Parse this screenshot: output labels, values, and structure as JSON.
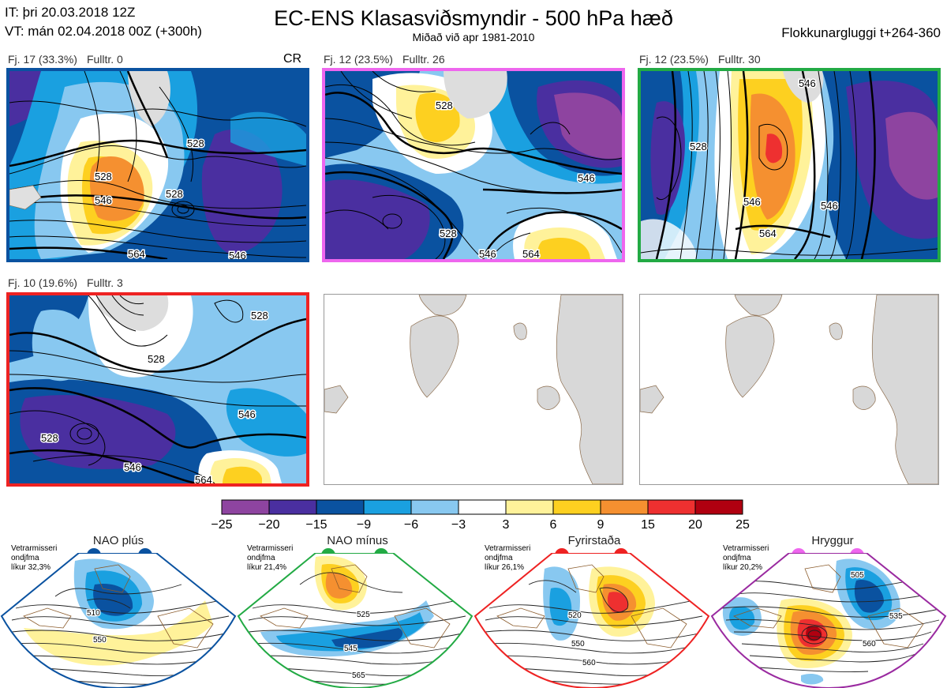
{
  "header": {
    "it": "IT: þri 20.03.2018 12Z",
    "vt": "VT: mán 02.04.2018 00Z  (+300h)",
    "title": "EC-ENS Klasasviðsmyndir - 500 hPa hæð",
    "subtitle": "Miðað við apr 1981-2010",
    "window": "Flokkunargluggi t+264-360"
  },
  "clusters": [
    {
      "count": "Fj. 17 (33.3%)",
      "member": "Fulltr. 0",
      "tag": "CR",
      "color": "#0a52a0",
      "contours": [
        "528",
        "528",
        "546",
        "564",
        "546",
        "528"
      ]
    },
    {
      "count": "Fj. 12 (23.5%)",
      "member": "Fulltr. 26",
      "tag": "",
      "color": "#ee66ee",
      "contours": [
        "528",
        "528",
        "546",
        "564",
        "546"
      ]
    },
    {
      "count": "Fj. 12 (23.5%)",
      "member": "Fulltr. 30",
      "tag": "",
      "color": "#22aa44",
      "contours": [
        "546",
        "528",
        "546",
        "564",
        "546"
      ]
    },
    {
      "count": "Fj. 10 (19.6%)",
      "member": "Fulltr. 3",
      "tag": "",
      "color": "#ee2222",
      "contours": [
        "528",
        "528",
        "546",
        "546",
        "564",
        "528"
      ]
    }
  ],
  "colorbar": {
    "colors": [
      "#8e44a0",
      "#4a2fa0",
      "#0a52a0",
      "#1aa0e0",
      "#88c8f0",
      "#ffffff",
      "#fff29a",
      "#fdd020",
      "#f59030",
      "#ee3030",
      "#b00010"
    ],
    "ticks": [
      "−25",
      "−20",
      "−15",
      "−9",
      "−6",
      "−3",
      "3",
      "6",
      "9",
      "15",
      "20",
      "25"
    ]
  },
  "regimes": [
    {
      "name": "NAO plús",
      "color": "#0a52a0",
      "info": [
        "Vetrarmisseri",
        "ondjfma",
        "líkur 32,3%"
      ],
      "contours": [
        "510",
        "550"
      ]
    },
    {
      "name": "NAO mínus",
      "color": "#22aa44",
      "info": [
        "Vetrarmisseri",
        "ondjfma",
        "líkur 21,4%"
      ],
      "contours": [
        "525",
        "545",
        "565"
      ]
    },
    {
      "name": "Fyrirstaða",
      "color": "#ee2222",
      "info": [
        "Vetrarmisseri",
        "ondjfma",
        "líkur 26,1%"
      ],
      "contours": [
        "520",
        "550",
        "560"
      ]
    },
    {
      "name": "Hryggur",
      "color": "#ee66ee",
      "info": [
        "Vetrarmisseri",
        "ondjfma",
        "líkur 20,2%"
      ],
      "contours": [
        "505",
        "535",
        "560"
      ]
    }
  ]
}
